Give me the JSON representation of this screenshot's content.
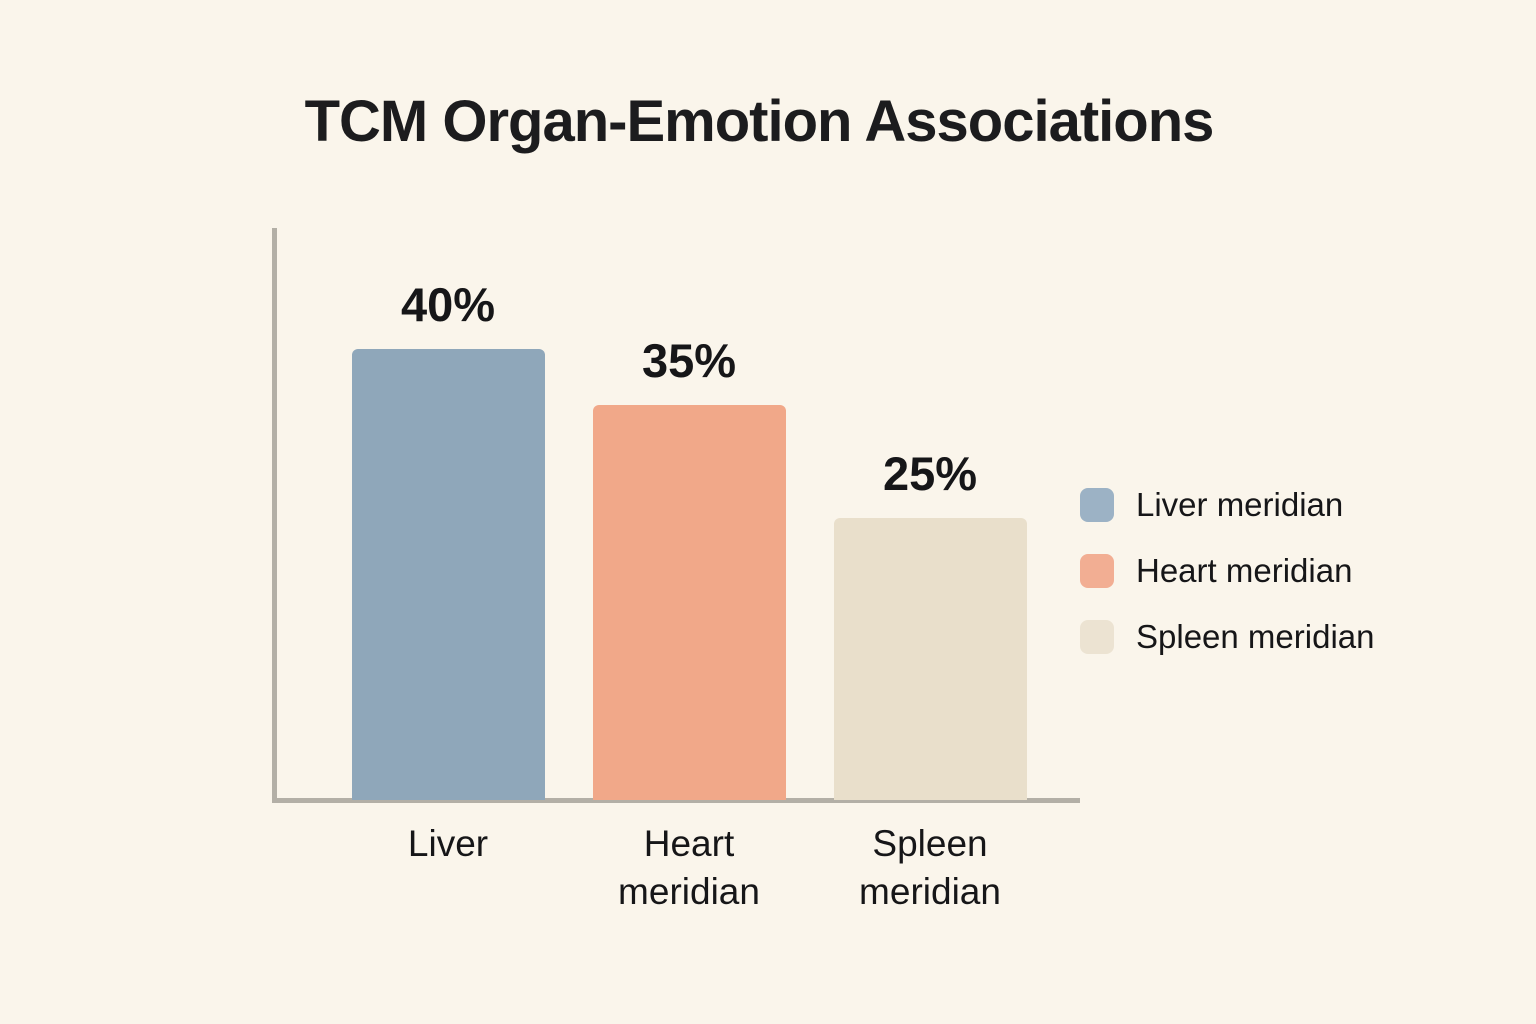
{
  "page": {
    "background_color": "#faf5eb",
    "text_color": "#161618",
    "axis_color": "#b3afa6"
  },
  "chart_data": {
    "type": "bar",
    "title": "TCM Organ-Emotion Associations",
    "categories": [
      "Liver",
      "Heart meridian",
      "Spleen meridian"
    ],
    "values": [
      40,
      35,
      25
    ],
    "value_labels": [
      "40%",
      "35%",
      "25%"
    ],
    "bar_colors": [
      "#8fa7ba",
      "#f1a889",
      "#e9dfcb"
    ],
    "xlabel": "",
    "ylabel": "",
    "ylim": [
      0,
      45
    ],
    "grid": false,
    "y_ticks_visible": false,
    "legend": {
      "position": "right",
      "entries": [
        {
          "label": "Liver meridian",
          "color": "#9cb2c5"
        },
        {
          "label": "Heart meridian",
          "color": "#f2ae93"
        },
        {
          "label": "Spleen meridian",
          "color": "#ece3d2"
        }
      ]
    }
  }
}
